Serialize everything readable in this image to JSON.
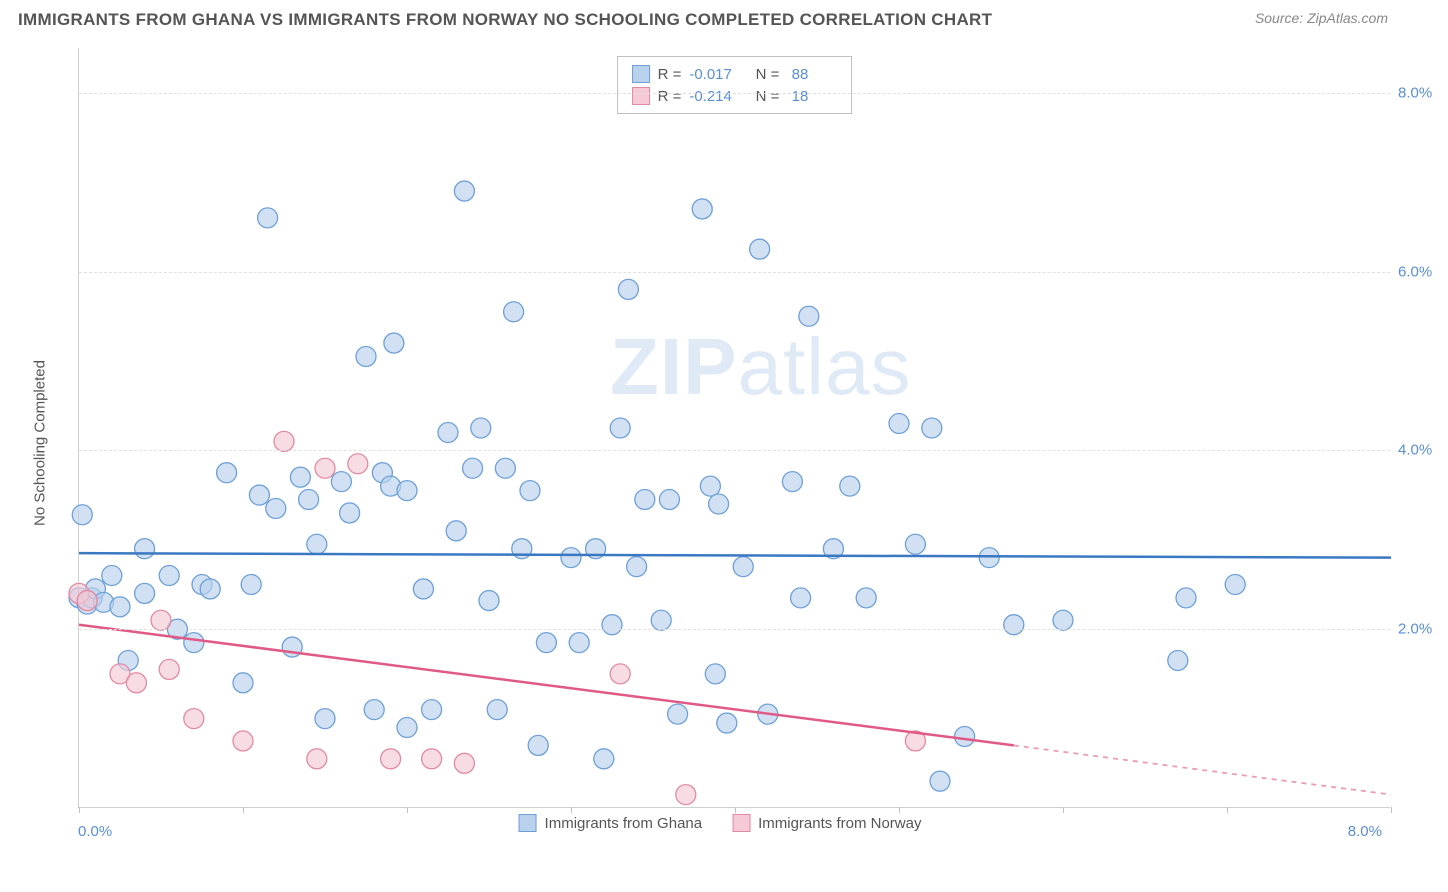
{
  "title": "IMMIGRANTS FROM GHANA VS IMMIGRANTS FROM NORWAY NO SCHOOLING COMPLETED CORRELATION CHART",
  "source_prefix": "Source: ",
  "source_name": "ZipAtlas.com",
  "watermark_bold": "ZIP",
  "watermark_light": "atlas",
  "y_axis_title": "No Schooling Completed",
  "x_axis": {
    "min": 0.0,
    "max": 8.0,
    "label_min": "0.0%",
    "label_max": "8.0%",
    "tick_step": 1.0
  },
  "y_axis": {
    "min": 0.0,
    "max": 8.5,
    "gridlines": [
      2.0,
      4.0,
      6.0,
      8.0
    ],
    "labels": [
      "2.0%",
      "4.0%",
      "6.0%",
      "8.0%"
    ]
  },
  "series": [
    {
      "name": "Immigrants from Ghana",
      "fill": "#b9d1ec",
      "stroke": "#6ea0d8",
      "line_color": "#3a78c2",
      "r_label": "R =",
      "r_value": "-0.017",
      "n_label": "N =",
      "n_value": "88",
      "trend": {
        "x1": 0.0,
        "y1": 2.85,
        "x2": 8.0,
        "y2": 2.8
      },
      "marker_radius": 10,
      "points": [
        [
          0.0,
          2.35
        ],
        [
          0.02,
          3.28
        ],
        [
          0.05,
          2.28
        ],
        [
          0.08,
          2.35
        ],
        [
          0.1,
          2.45
        ],
        [
          0.15,
          2.3
        ],
        [
          0.2,
          2.6
        ],
        [
          0.25,
          2.25
        ],
        [
          0.3,
          1.65
        ],
        [
          0.4,
          2.4
        ],
        [
          0.55,
          2.6
        ],
        [
          0.6,
          2.0
        ],
        [
          0.7,
          1.85
        ],
        [
          0.75,
          2.5
        ],
        [
          0.8,
          2.45
        ],
        [
          0.9,
          3.75
        ],
        [
          1.0,
          1.4
        ],
        [
          1.05,
          2.5
        ],
        [
          1.1,
          3.5
        ],
        [
          1.15,
          6.6
        ],
        [
          1.3,
          1.8
        ],
        [
          1.35,
          3.7
        ],
        [
          1.4,
          3.45
        ],
        [
          1.45,
          2.95
        ],
        [
          1.5,
          1.0
        ],
        [
          1.6,
          3.65
        ],
        [
          1.65,
          3.3
        ],
        [
          1.75,
          5.05
        ],
        [
          1.8,
          1.1
        ],
        [
          1.85,
          3.75
        ],
        [
          1.9,
          3.6
        ],
        [
          1.92,
          5.2
        ],
        [
          2.0,
          0.9
        ],
        [
          2.1,
          2.45
        ],
        [
          2.15,
          1.1
        ],
        [
          2.25,
          4.2
        ],
        [
          2.3,
          3.1
        ],
        [
          2.35,
          6.9
        ],
        [
          2.4,
          3.8
        ],
        [
          2.5,
          2.32
        ],
        [
          2.55,
          1.1
        ],
        [
          2.6,
          3.8
        ],
        [
          2.65,
          5.55
        ],
        [
          2.7,
          2.9
        ],
        [
          2.75,
          3.55
        ],
        [
          2.8,
          0.7
        ],
        [
          2.85,
          1.85
        ],
        [
          3.0,
          2.8
        ],
        [
          3.05,
          1.85
        ],
        [
          3.15,
          2.9
        ],
        [
          3.2,
          0.55
        ],
        [
          3.3,
          4.25
        ],
        [
          3.35,
          5.8
        ],
        [
          3.4,
          2.7
        ],
        [
          3.45,
          3.45
        ],
        [
          3.55,
          2.1
        ],
        [
          3.65,
          1.05
        ],
        [
          3.8,
          6.7
        ],
        [
          3.85,
          3.6
        ],
        [
          3.88,
          1.5
        ],
        [
          3.9,
          3.4
        ],
        [
          3.95,
          0.95
        ],
        [
          4.05,
          2.7
        ],
        [
          4.15,
          6.25
        ],
        [
          4.2,
          1.05
        ],
        [
          4.35,
          3.65
        ],
        [
          4.4,
          2.35
        ],
        [
          4.45,
          5.5
        ],
        [
          4.6,
          2.9
        ],
        [
          4.8,
          2.35
        ],
        [
          5.0,
          4.3
        ],
        [
          5.1,
          2.95
        ],
        [
          5.2,
          4.25
        ],
        [
          5.25,
          0.3
        ],
        [
          5.4,
          0.8
        ],
        [
          5.55,
          2.8
        ],
        [
          5.7,
          2.05
        ],
        [
          6.0,
          2.1
        ],
        [
          6.7,
          1.65
        ],
        [
          6.75,
          2.35
        ],
        [
          7.05,
          2.5
        ],
        [
          0.4,
          2.9
        ],
        [
          1.2,
          3.35
        ],
        [
          2.0,
          3.55
        ],
        [
          3.6,
          3.45
        ],
        [
          4.7,
          3.6
        ],
        [
          2.45,
          4.25
        ],
        [
          3.25,
          2.05
        ]
      ]
    },
    {
      "name": "Immigrants from Norway",
      "fill": "#f5c9d5",
      "stroke": "#e28aa3",
      "line_color": "#e05a85",
      "r_label": "R =",
      "r_value": "-0.214",
      "n_label": "N =",
      "n_value": "18",
      "trend": {
        "x1": 0.0,
        "y1": 2.05,
        "x2": 5.7,
        "y2": 0.7,
        "dash_to_x": 8.0,
        "dash_to_y": 0.15
      },
      "marker_radius": 10,
      "points": [
        [
          0.0,
          2.4
        ],
        [
          0.05,
          2.32
        ],
        [
          0.25,
          1.5
        ],
        [
          0.35,
          1.4
        ],
        [
          0.5,
          2.1
        ],
        [
          0.55,
          1.55
        ],
        [
          0.7,
          1.0
        ],
        [
          1.0,
          0.75
        ],
        [
          1.25,
          4.1
        ],
        [
          1.45,
          0.55
        ],
        [
          1.5,
          3.8
        ],
        [
          1.7,
          3.85
        ],
        [
          1.9,
          0.55
        ],
        [
          2.15,
          0.55
        ],
        [
          2.35,
          0.5
        ],
        [
          3.3,
          1.5
        ],
        [
          3.7,
          0.15
        ],
        [
          5.1,
          0.75
        ]
      ]
    }
  ]
}
